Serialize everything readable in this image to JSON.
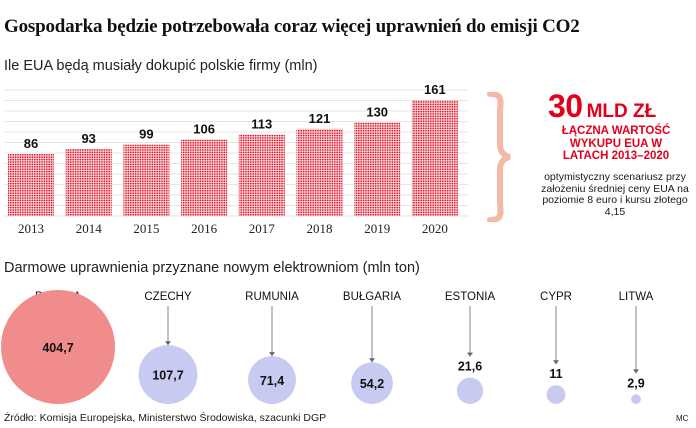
{
  "title": "Gospodarka będzie potrzebowała coraz więcej uprawnień do emisji CO2",
  "chart_data": [
    {
      "type": "bar",
      "title": "Ile EUA będą musiały dokupić polskie firmy (mln)",
      "categories": [
        "2013",
        "2014",
        "2015",
        "2016",
        "2017",
        "2018",
        "2019",
        "2020"
      ],
      "values": [
        86,
        93,
        99,
        106,
        113,
        121,
        130,
        161
      ],
      "value_labels": [
        "86",
        "93",
        "99",
        "106",
        "113",
        "121",
        "130",
        "161"
      ],
      "ylim": [
        0,
        175
      ],
      "grid": true,
      "color": "#e2001a",
      "xlabel": "",
      "ylabel": ""
    },
    {
      "type": "bubble",
      "title": "Darmowe uprawnienia przyznane nowym elektrowniom (mln ton)",
      "categories": [
        "POLSKA",
        "CZECHY",
        "RUMUNIA",
        "BUŁGARIA",
        "ESTONIA",
        "CYPR",
        "LITWA"
      ],
      "values": [
        404.7,
        107.7,
        71.4,
        54.2,
        21.6,
        11,
        2.9
      ],
      "value_labels": [
        "404,7",
        "107,7",
        "71,4",
        "54,2",
        "21,6",
        "11",
        "2,9"
      ],
      "colors": {
        "highlight": "#f08c8c",
        "others": "#c9caf2"
      }
    }
  ],
  "callout": {
    "amount": "30",
    "unit": "MLD ZŁ",
    "description": "ŁĄCZNA WARTOŚĆ WYKUPU EUA W LATACH 2013–2020",
    "note": "optymistyczny scenariusz przy założeniu średniej ceny EUA na poziomie 8 euro i kursu złotego 4,15",
    "color": "#e2001a",
    "brace_color": "#f4b9a6"
  },
  "source": "Źródło: Komisja Europejska, Ministerstwo Środowiska, szacunki DGP",
  "credit": "MC"
}
